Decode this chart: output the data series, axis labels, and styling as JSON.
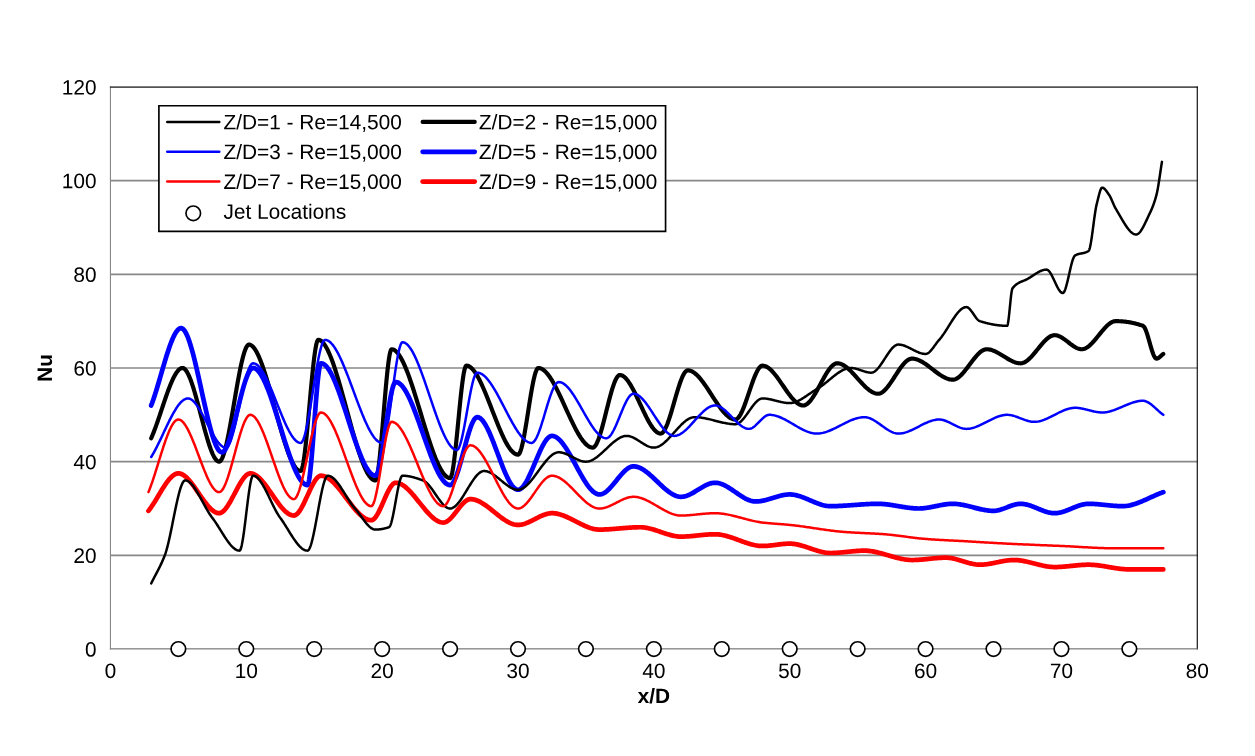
{
  "chart_data": {
    "type": "line",
    "xlabel": "x/D",
    "ylabel": "Nu",
    "xlim": [
      0,
      80
    ],
    "xticks": [
      0,
      10,
      20,
      30,
      40,
      50,
      60,
      70,
      80
    ],
    "ylim": [
      0,
      120
    ],
    "yticks": [
      0,
      20,
      40,
      60,
      80,
      100,
      120
    ],
    "grid": "y",
    "legend": "top left",
    "line_style": "solid",
    "series": [
      {
        "name": "Z/D=1 - Re=14,500",
        "color": "#000000",
        "x": [
          3,
          4,
          5.5,
          7.5,
          9.5,
          10.5,
          12.5,
          14.5,
          16,
          18,
          19.5,
          20.5,
          21.5,
          23,
          25,
          27.5,
          30,
          33,
          35,
          38,
          40,
          43,
          46,
          48,
          50,
          52,
          54.5,
          56,
          58,
          60,
          61,
          63,
          64,
          66,
          66.4,
          67.5,
          68.9,
          70.1,
          71,
          72,
          72.6,
          73,
          73.5,
          74,
          75.5,
          76.5,
          77,
          77.4
        ],
        "values": [
          14,
          20,
          36,
          28,
          21,
          37,
          28,
          21,
          37,
          30,
          25.5,
          26,
          37,
          36,
          30,
          38,
          34,
          42,
          40,
          45.5,
          43,
          49.5,
          48,
          53.5,
          52.5,
          55.5,
          60,
          59,
          65,
          63,
          66,
          73,
          70,
          69,
          77,
          79,
          81,
          76,
          84,
          85,
          95,
          98.5,
          97,
          94,
          88.5,
          93,
          97,
          104
        ]
      },
      {
        "name": "Z/D=2 - Re=15,000",
        "color": "#000000",
        "x": [
          3,
          5.3,
          8,
          10.2,
          14,
          15.3,
          19.5,
          20.7,
          25,
          26.2,
          30,
          31.5,
          35.5,
          37.5,
          40.5,
          42.5,
          46,
          48,
          51,
          53.5,
          56.5,
          59,
          62,
          64.5,
          67,
          69.5,
          71.5,
          74,
          76,
          77,
          77.5
        ],
        "values": [
          45,
          60,
          40,
          65,
          38,
          66,
          36,
          64,
          36.5,
          60.5,
          41.5,
          60,
          43,
          58.5,
          46,
          59.5,
          49,
          60.5,
          52,
          61,
          54.5,
          62,
          57.5,
          64,
          61,
          67,
          64,
          70,
          69,
          62,
          63
        ]
      },
      {
        "name": "Z/D=3 - Re=15,000",
        "color": "#0000ff",
        "x": [
          3,
          5.7,
          8.5,
          10.5,
          14,
          15.8,
          20,
          21.5,
          25.5,
          27,
          31,
          33,
          36.5,
          38.5,
          41.5,
          44.5,
          47,
          48.5,
          52,
          55.5,
          58,
          61,
          63,
          66,
          68,
          71,
          73,
          76,
          77.5
        ],
        "values": [
          41,
          53.5,
          43,
          61,
          44,
          66,
          44,
          65.5,
          42.5,
          59,
          44,
          57,
          45,
          54.5,
          45.5,
          52,
          47,
          50,
          46,
          49.5,
          46,
          49,
          47,
          50,
          48.5,
          51.5,
          50.5,
          53,
          50
        ]
      },
      {
        "name": "Z/D=5 - Re=15,000",
        "color": "#0000ff",
        "x": [
          3,
          5.2,
          8.2,
          10.5,
          14.5,
          15.5,
          19.5,
          21,
          25,
          27,
          30,
          32.5,
          36,
          38.5,
          42,
          44.5,
          47.5,
          50,
          53,
          56.5,
          59.5,
          62,
          65,
          67,
          69.5,
          72,
          74.5,
          77.5
        ],
        "values": [
          52,
          68.5,
          42,
          60,
          35,
          61,
          37,
          57,
          35,
          49.5,
          34,
          45.5,
          33,
          39,
          32.5,
          35.5,
          31.5,
          33,
          30.5,
          31,
          30,
          31,
          29.5,
          31,
          29,
          31,
          30.5,
          33.5
        ]
      },
      {
        "name": "Z/D=7 - Re=15,000",
        "color": "#ff0000",
        "x": [
          2.8,
          5,
          8,
          10.3,
          13.5,
          15.5,
          19.2,
          20.7,
          24.5,
          26.5,
          30,
          32.5,
          36,
          38.5,
          42,
          44.5,
          48,
          50,
          54,
          57,
          60,
          63,
          66,
          70,
          74,
          77.5
        ],
        "values": [
          33.5,
          49,
          33.5,
          50,
          32,
          50.5,
          30.5,
          48.5,
          30.5,
          43.5,
          30,
          37,
          30,
          32.5,
          28.5,
          29,
          27,
          26.5,
          25,
          24.5,
          23.5,
          23,
          22.5,
          22,
          21.5,
          21.5
        ]
      },
      {
        "name": "Z/D=9 - Re=15,000",
        "color": "#ff0000",
        "x": [
          2.8,
          5,
          8,
          10.3,
          13.5,
          15.5,
          19.2,
          21,
          24.5,
          26.5,
          30,
          32.5,
          36,
          39,
          42,
          44.5,
          48,
          50,
          53,
          55.5,
          59,
          61.5,
          64,
          66.5,
          69.5,
          72,
          75,
          77.5
        ],
        "values": [
          29.5,
          37.5,
          29,
          37.5,
          28.5,
          37,
          27.5,
          35.5,
          27,
          32,
          26.5,
          29,
          25.5,
          26,
          24,
          24.5,
          22,
          22.5,
          20.5,
          21,
          19,
          19.5,
          18,
          19,
          17.5,
          18,
          17,
          17
        ]
      },
      {
        "name": "Jet Locations",
        "type": "scatter",
        "marker": "circle",
        "color": "#000000",
        "x": [
          5,
          10,
          15,
          20,
          25,
          30,
          35,
          40,
          45,
          50,
          55,
          60,
          65,
          70,
          75
        ],
        "values": [
          0,
          0,
          0,
          0,
          0,
          0,
          0,
          0,
          0,
          0,
          0,
          0,
          0,
          0,
          0
        ]
      }
    ]
  }
}
